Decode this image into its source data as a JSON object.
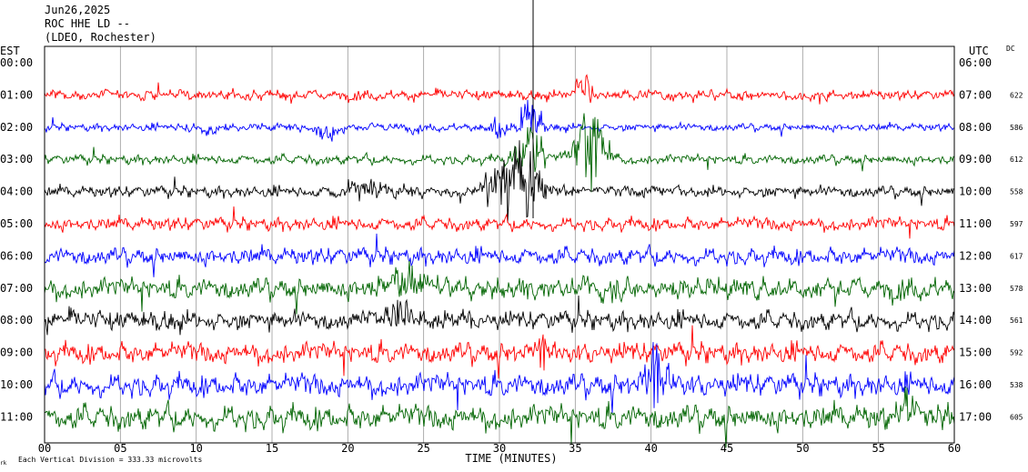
{
  "header": {
    "date": "Jun26,2025",
    "station": "ROC HHE LD --",
    "network": "(LDEO, Rochester)"
  },
  "axis": {
    "left_label": "EST",
    "right_label": "UTC",
    "dc_label": "DC",
    "x_title": "TIME (MINUTES)",
    "footer_note": "Each Vertical Division =  333.33 microvolts",
    "footer_mark": "rk"
  },
  "chart_data": {
    "type": "line",
    "title": "",
    "xlabel": "TIME (MINUTES)",
    "ylabel": "",
    "xlim": [
      0,
      60
    ],
    "x_ticks": [
      "00",
      "05",
      "10",
      "15",
      "20",
      "25",
      "30",
      "35",
      "40",
      "45",
      "50",
      "55",
      "60"
    ],
    "est_labels": [
      "00:00",
      "01:00",
      "02:00",
      "03:00",
      "04:00",
      "05:00",
      "06:00",
      "07:00",
      "08:00",
      "09:00",
      "10:00",
      "11:00"
    ],
    "utc_labels": [
      "06:00",
      "07:00",
      "08:00",
      "09:00",
      "10:00",
      "11:00",
      "12:00",
      "13:00",
      "14:00",
      "15:00",
      "16:00",
      "17:00"
    ],
    "colors": [
      "#ff0000",
      "#0000ff",
      "#006400",
      "#000000"
    ],
    "grid": "vertical lines every 5 minutes",
    "series": [
      {
        "est": "01:00",
        "utc": "07:00",
        "dc": 622,
        "color": "#ff0000",
        "noise": 5,
        "events": [
          {
            "t": 35.5,
            "amp": 20,
            "dur": 1
          }
        ]
      },
      {
        "est": "02:00",
        "utc": "08:00",
        "dc": 586,
        "color": "#0000ff",
        "noise": 4,
        "events": [
          {
            "t": 11,
            "amp": -7,
            "dur": 1.5
          },
          {
            "t": 18.7,
            "amp": -16,
            "dur": 1.2
          },
          {
            "t": 30,
            "amp": -14,
            "dur": 1.2
          },
          {
            "t": 32,
            "amp": 30,
            "dur": 1
          }
        ]
      },
      {
        "est": "03:00",
        "utc": "09:00",
        "dc": 612,
        "color": "#006400",
        "noise": 5,
        "events": [
          {
            "t": 32,
            "amp": 35,
            "dur": 1.5
          },
          {
            "t": 36,
            "amp": 55,
            "dur": 1.5
          }
        ]
      },
      {
        "est": "04:00",
        "utc": "10:00",
        "dc": 558,
        "color": "#000000",
        "noise": 6,
        "events": [
          {
            "t": 21,
            "amp": 14,
            "dur": 1.5
          },
          {
            "t": 31,
            "amp": 45,
            "dur": 2.5
          }
        ]
      },
      {
        "est": "05:00",
        "utc": "11:00",
        "dc": 597,
        "color": "#ff0000",
        "noise": 7,
        "events": []
      },
      {
        "est": "06:00",
        "utc": "12:00",
        "dc": 617,
        "color": "#0000ff",
        "noise": 9,
        "events": []
      },
      {
        "est": "07:00",
        "utc": "13:00",
        "dc": 578,
        "color": "#006400",
        "noise": 11,
        "events": [
          {
            "t": 24,
            "amp": 25,
            "dur": 2
          }
        ]
      },
      {
        "est": "08:00",
        "utc": "14:00",
        "dc": 561,
        "color": "#000000",
        "noise": 10,
        "events": [
          {
            "t": 23.5,
            "amp": 18,
            "dur": 2
          }
        ]
      },
      {
        "est": "09:00",
        "utc": "15:00",
        "dc": 592,
        "color": "#ff0000",
        "noise": 11,
        "events": [
          {
            "t": 33,
            "amp": 15,
            "dur": 1.5
          }
        ]
      },
      {
        "est": "10:00",
        "utc": "16:00",
        "dc": 538,
        "color": "#0000ff",
        "noise": 12,
        "events": [
          {
            "t": 40.5,
            "amp": 40,
            "dur": 1.5
          }
        ]
      },
      {
        "est": "11:00",
        "utc": "17:00",
        "dc": 605,
        "color": "#006400",
        "noise": 13,
        "events": [
          {
            "t": 57,
            "amp": 25,
            "dur": 1
          }
        ]
      }
    ]
  }
}
